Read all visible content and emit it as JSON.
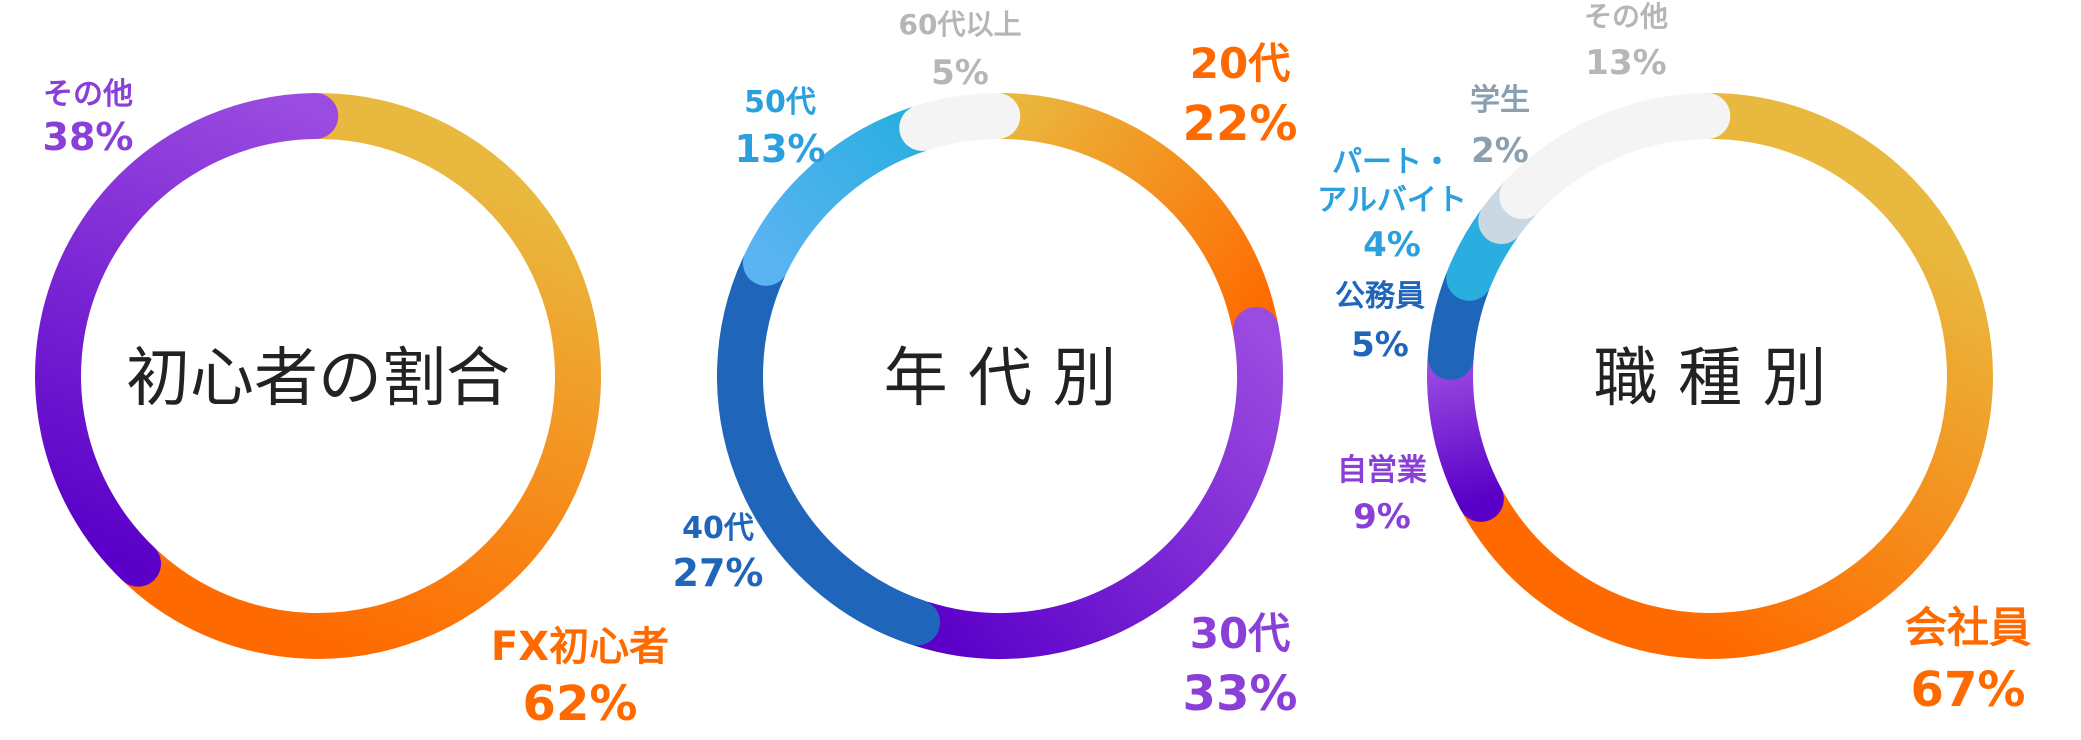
{
  "chart_data": [
    {
      "type": "pie",
      "variant": "donut",
      "title": "初心者の割合",
      "series": [
        {
          "label": "FX初心者",
          "value": 62,
          "display": "62%",
          "color_start": "#e9b83e",
          "color_end": "#ff6a00"
        },
        {
          "label": "その他",
          "value": 38,
          "display": "38%",
          "color_start": "#5a00c8",
          "color_end": "#9a4be0"
        }
      ]
    },
    {
      "type": "pie",
      "variant": "donut",
      "title": "年 代 別",
      "series": [
        {
          "label": "20代",
          "value": 22,
          "display": "22%",
          "color_start": "#e9b83e",
          "color_end": "#ff6a00"
        },
        {
          "label": "30代",
          "value": 33,
          "display": "33%",
          "color_start": "#9a4be0",
          "color_end": "#5a00c8"
        },
        {
          "label": "40代",
          "value": 27,
          "display": "27%",
          "color_start": "#1f66bb",
          "color_end": "#1f66bb"
        },
        {
          "label": "50代",
          "value": 13,
          "display": "13%",
          "color_start": "#5ab4f2",
          "color_end": "#2aaee0"
        },
        {
          "label": "60代以上",
          "value": 5,
          "display": "5%",
          "color_start": "#f4f4f4",
          "color_end": "#f4f4f4"
        }
      ]
    },
    {
      "type": "pie",
      "variant": "donut",
      "title": "職 種 別",
      "series": [
        {
          "label": "会社員",
          "value": 67,
          "display": "67%",
          "color_start": "#e9b83e",
          "color_end": "#ff6a00"
        },
        {
          "label": "自営業",
          "value": 9,
          "display": "9%",
          "color_start": "#5a00c8",
          "color_end": "#9a4be0"
        },
        {
          "label": "公務員",
          "value": 5,
          "display": "5%",
          "color_start": "#1f66bb",
          "color_end": "#1f66bb"
        },
        {
          "label": "パート・アルバイト",
          "value": 4,
          "display": "4%",
          "color_start": "#2aaee0",
          "color_end": "#2aaee0"
        },
        {
          "label": "学生",
          "value": 2,
          "display": "2%",
          "color_start": "#c9d8e2",
          "color_end": "#c9d8e2"
        },
        {
          "label": "その他",
          "value": 13,
          "display": "13%",
          "color_start": "#f4f4f4",
          "color_end": "#f4f4f4"
        }
      ]
    }
  ],
  "labels": {
    "c1": {
      "title": "初心者の割合",
      "items": [
        {
          "name": "その他",
          "pct": "38%",
          "color": "#8a3fd6"
        },
        {
          "name": "FX初心者",
          "pct": "62%",
          "color": "#ff6a00"
        }
      ]
    },
    "c2": {
      "title": "年 代 別",
      "items": [
        {
          "name": "60代以上",
          "pct": "5%",
          "color": "#b6b6b6"
        },
        {
          "name": "20代",
          "pct": "22%",
          "color": "#ff6a00"
        },
        {
          "name": "50代",
          "pct": "13%",
          "color": "#2aa0df"
        },
        {
          "name": "40代",
          "pct": "27%",
          "color": "#1f66bb"
        },
        {
          "name": "30代",
          "pct": "33%",
          "color": "#8a3fd6"
        }
      ]
    },
    "c3": {
      "title": "職 種 別",
      "items": [
        {
          "name": "その他",
          "pct": "13%",
          "color": "#b6b6b6"
        },
        {
          "name": "学生",
          "pct": "2%",
          "color": "#8aa0b0"
        },
        {
          "name": "パート・",
          "name2": "アルバイト",
          "pct": "4%",
          "color": "#2aa0df"
        },
        {
          "name": "公務員",
          "pct": "5%",
          "color": "#1f66bb"
        },
        {
          "name": "自営業",
          "pct": "9%",
          "color": "#8a3fd6"
        },
        {
          "name": "会社員",
          "pct": "67%",
          "color": "#ff6a00"
        }
      ]
    }
  }
}
